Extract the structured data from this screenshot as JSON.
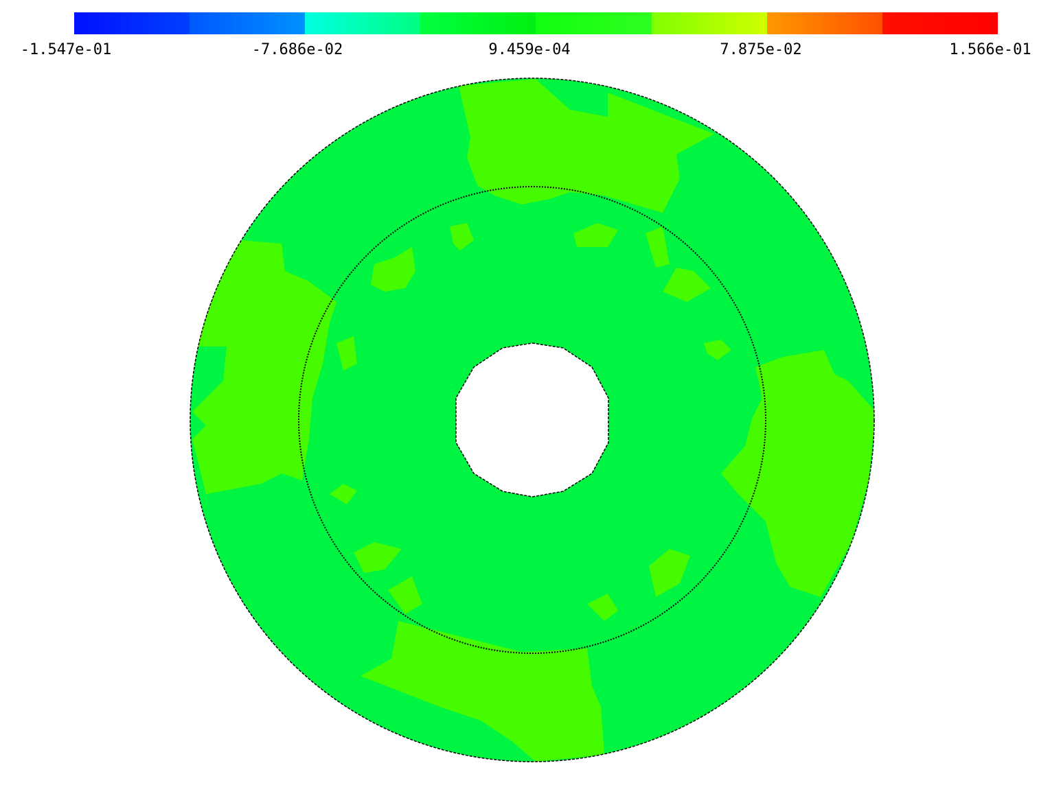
{
  "colorbar": {
    "labels": [
      "-1.547e-01",
      "-7.686e-02",
      "9.459e-04",
      "7.875e-02",
      "1.566e-01"
    ]
  }
}
